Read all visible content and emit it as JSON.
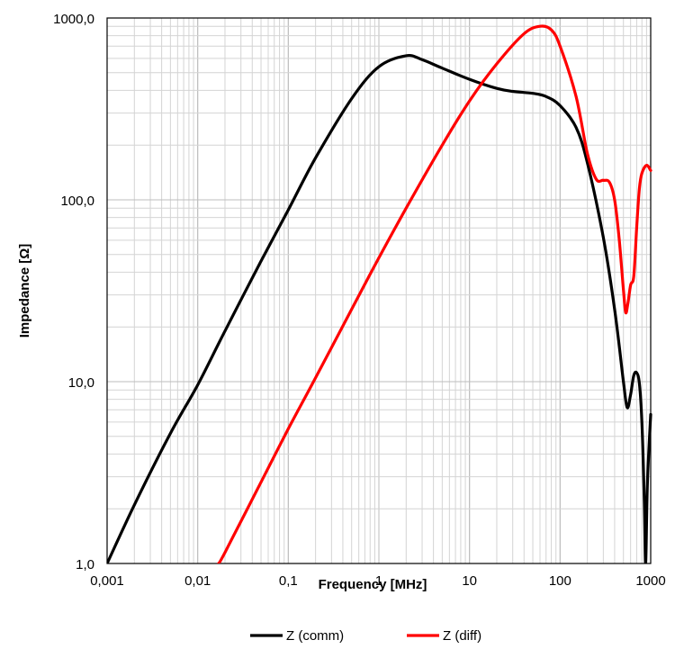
{
  "chart_data": {
    "type": "line",
    "xlabel": "Frequency  [MHz]",
    "ylabel": "Impedance [Ω]",
    "x_scale": "log",
    "y_scale": "log",
    "xlim": [
      0.001,
      1000
    ],
    "ylim": [
      1,
      1000
    ],
    "grid": true,
    "legend_position": "bottom",
    "x_tick_labels": [
      "0,001",
      "0,01",
      "0,1",
      "1",
      "10",
      "100",
      "1000"
    ],
    "y_tick_labels": [
      "1,0",
      "10,0",
      "100,0",
      "1000,0"
    ],
    "series": [
      {
        "name": "Z  (comm)",
        "color": "#000000",
        "points": [
          [
            0.001,
            1.0
          ],
          [
            0.002,
            2.1
          ],
          [
            0.005,
            5.2
          ],
          [
            0.01,
            9.6
          ],
          [
            0.02,
            19
          ],
          [
            0.05,
            46
          ],
          [
            0.1,
            88
          ],
          [
            0.2,
            170
          ],
          [
            0.5,
            360
          ],
          [
            1,
            540
          ],
          [
            2,
            620
          ],
          [
            3,
            590
          ],
          [
            5,
            530
          ],
          [
            10,
            460
          ],
          [
            20,
            410
          ],
          [
            30,
            395
          ],
          [
            50,
            385
          ],
          [
            70,
            370
          ],
          [
            100,
            330
          ],
          [
            150,
            250
          ],
          [
            200,
            160
          ],
          [
            300,
            62
          ],
          [
            400,
            25
          ],
          [
            500,
            10
          ],
          [
            550,
            7.2
          ],
          [
            600,
            8.5
          ],
          [
            650,
            10.8
          ],
          [
            700,
            11.2
          ],
          [
            750,
            9.8
          ],
          [
            800,
            6.0
          ],
          [
            850,
            2.2
          ],
          [
            880,
            1.0
          ],
          [
            920,
            2.8
          ],
          [
            1000,
            6.6
          ]
        ]
      },
      {
        "name": "Z (diff)",
        "color": "#ff0000",
        "points": [
          [
            0.017,
            1.0
          ],
          [
            0.02,
            1.15
          ],
          [
            0.05,
            2.8
          ],
          [
            0.1,
            5.5
          ],
          [
            0.2,
            10.5
          ],
          [
            0.5,
            25
          ],
          [
            1,
            48
          ],
          [
            2,
            90
          ],
          [
            5,
            200
          ],
          [
            10,
            350
          ],
          [
            20,
            560
          ],
          [
            40,
            820
          ],
          [
            60,
            900
          ],
          [
            80,
            860
          ],
          [
            100,
            700
          ],
          [
            150,
            370
          ],
          [
            200,
            180
          ],
          [
            250,
            130
          ],
          [
            300,
            128
          ],
          [
            350,
            125
          ],
          [
            400,
            100
          ],
          [
            450,
            60
          ],
          [
            500,
            32
          ],
          [
            530,
            24
          ],
          [
            560,
            27
          ],
          [
            600,
            34
          ],
          [
            650,
            38
          ],
          [
            700,
            70
          ],
          [
            750,
            115
          ],
          [
            800,
            140
          ],
          [
            900,
            155
          ],
          [
            1000,
            145
          ]
        ]
      }
    ]
  }
}
